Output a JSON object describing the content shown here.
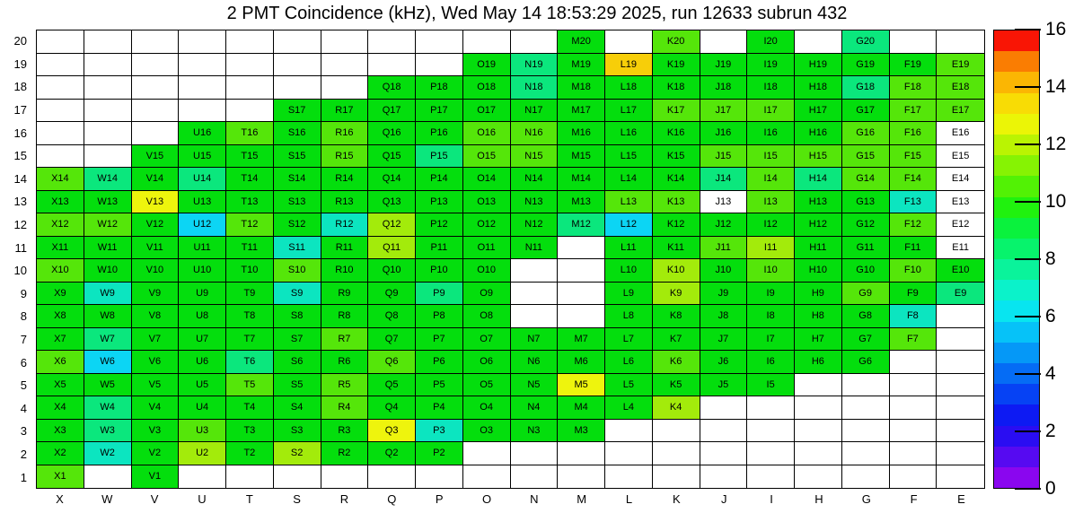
{
  "chart_data": {
    "type": "heatmap",
    "title": "2 PMT Coincidence (kHz), Wed May 14 18:53:29 2025, run 12633 subrun 432",
    "columns": [
      "X",
      "W",
      "V",
      "U",
      "T",
      "S",
      "R",
      "Q",
      "P",
      "O",
      "N",
      "M",
      "L",
      "K",
      "J",
      "I",
      "H",
      "G",
      "F",
      "E"
    ],
    "rows": [
      "20",
      "19",
      "18",
      "17",
      "16",
      "15",
      "14",
      "13",
      "12",
      "11",
      "10",
      "9",
      "8",
      "7",
      "6",
      "5",
      "4",
      "3",
      "2",
      "1"
    ],
    "cell_label_rule": "column letter + row number, e.g. X14",
    "value_scale": {
      "min": 0,
      "max": 16,
      "unit": "kHz",
      "ticks_top_to_bottom": [
        "16",
        "14",
        "12",
        "10",
        "8",
        "6",
        "4",
        "2",
        "0"
      ]
    },
    "palette_colors": {
      "g": "#04DE0D",
      "lg": "#55E60A",
      "yg": "#A3EB0B",
      "y": "#EEF40D",
      "gold": "#F7CE09",
      "sg": "#0BE77D",
      "tq": "#0CE5C0",
      "cy": "#0CD5F4",
      "w": "#FFFFFF"
    },
    "palette_value_estimates_khz": {
      "g": 9,
      "lg": 10,
      "yg": 11,
      "y": 12,
      "gold": 13,
      "sg": 7.5,
      "tq": 6.5,
      "cy": 5.5,
      "w": 0
    },
    "colorbar_bands_bottom_to_top": [
      "#8A06EF",
      "#560AF1",
      "#2A0DF2",
      "#0D1AF3",
      "#0642F4",
      "#056CF5",
      "#0598F7",
      "#06C2F8",
      "#08E5F0",
      "#0BF2CA",
      "#0AF39B",
      "#07F36C",
      "#0AF23D",
      "#20F20E",
      "#52F205",
      "#86F303",
      "#BAF402",
      "#EBF506",
      "#F8DC05",
      "#FBB603",
      "#FA7D02",
      "#F91505"
    ],
    "grid": [
      [
        "",
        "",
        "",
        "",
        "",
        "",
        "",
        "",
        "",
        "",
        "",
        "g",
        "",
        "lg",
        "",
        "g",
        "",
        "sg",
        "",
        ""
      ],
      [
        "",
        "",
        "",
        "",
        "",
        "",
        "",
        "",
        "",
        "g",
        "sg",
        "g",
        "gold",
        "g",
        "g",
        "g",
        "g",
        "g",
        "g",
        "lg"
      ],
      [
        "",
        "",
        "",
        "",
        "",
        "",
        "",
        "g",
        "g",
        "g",
        "sg",
        "g",
        "g",
        "g",
        "g",
        "g",
        "g",
        "sg",
        "lg",
        "lg"
      ],
      [
        "",
        "",
        "",
        "",
        "",
        "g",
        "g",
        "g",
        "g",
        "g",
        "g",
        "g",
        "g",
        "lg",
        "lg",
        "lg",
        "g",
        "g",
        "lg",
        "lg"
      ],
      [
        "",
        "",
        "",
        "g",
        "lg",
        "g",
        "lg",
        "g",
        "g",
        "lg",
        "lg",
        "g",
        "g",
        "g",
        "g",
        "g",
        "g",
        "lg",
        "lg",
        "w"
      ],
      [
        "",
        "",
        "g",
        "g",
        "g",
        "g",
        "lg",
        "g",
        "sg",
        "lg",
        "lg",
        "g",
        "g",
        "g",
        "lg",
        "lg",
        "lg",
        "lg",
        "lg",
        "w"
      ],
      [
        "lg",
        "sg",
        "g",
        "sg",
        "g",
        "g",
        "g",
        "g",
        "g",
        "g",
        "g",
        "g",
        "g",
        "g",
        "sg",
        "lg",
        "sg",
        "lg",
        "lg",
        "w"
      ],
      [
        "g",
        "g",
        "y",
        "g",
        "g",
        "g",
        "g",
        "g",
        "g",
        "g",
        "g",
        "g",
        "lg",
        "lg",
        "w",
        "lg",
        "g",
        "g",
        "tq",
        "w"
      ],
      [
        "lg",
        "lg",
        "g",
        "cy",
        "lg",
        "g",
        "tq",
        "yg",
        "g",
        "g",
        "g",
        "sg",
        "cy",
        "g",
        "g",
        "g",
        "g",
        "g",
        "lg",
        "w"
      ],
      [
        "g",
        "g",
        "g",
        "g",
        "g",
        "tq",
        "g",
        "yg",
        "g",
        "g",
        "g",
        "",
        "g",
        "g",
        "lg",
        "yg",
        "g",
        "g",
        "g",
        "w"
      ],
      [
        "lg",
        "g",
        "g",
        "g",
        "g",
        "lg",
        "g",
        "g",
        "g",
        "g",
        "",
        "",
        "g",
        "yg",
        "g",
        "lg",
        "g",
        "g",
        "lg",
        "g"
      ],
      [
        "g",
        "tq",
        "g",
        "g",
        "g",
        "tq",
        "g",
        "g",
        "sg",
        "g",
        "",
        "",
        "g",
        "yg",
        "g",
        "g",
        "g",
        "lg",
        "g",
        "sg"
      ],
      [
        "g",
        "g",
        "g",
        "g",
        "g",
        "g",
        "g",
        "g",
        "g",
        "g",
        "",
        "",
        "g",
        "g",
        "g",
        "g",
        "g",
        "g",
        "tq",
        ""
      ],
      [
        "g",
        "sg",
        "g",
        "g",
        "g",
        "g",
        "lg",
        "g",
        "g",
        "g",
        "g",
        "g",
        "g",
        "g",
        "g",
        "g",
        "g",
        "g",
        "lg",
        ""
      ],
      [
        "lg",
        "cy",
        "g",
        "g",
        "sg",
        "g",
        "g",
        "lg",
        "g",
        "g",
        "g",
        "g",
        "g",
        "lg",
        "g",
        "g",
        "g",
        "g",
        "",
        ""
      ],
      [
        "g",
        "g",
        "g",
        "g",
        "lg",
        "g",
        "lg",
        "g",
        "g",
        "g",
        "g",
        "y",
        "g",
        "g",
        "g",
        "g",
        "",
        "",
        "",
        ""
      ],
      [
        "g",
        "sg",
        "g",
        "g",
        "g",
        "g",
        "lg",
        "g",
        "g",
        "g",
        "g",
        "g",
        "g",
        "yg",
        "",
        "",
        "",
        "",
        "",
        ""
      ],
      [
        "g",
        "sg",
        "g",
        "lg",
        "g",
        "g",
        "g",
        "y",
        "tq",
        "g",
        "g",
        "g",
        "",
        "",
        "",
        "",
        "",
        "",
        "",
        ""
      ],
      [
        "g",
        "tq",
        "g",
        "yg",
        "g",
        "yg",
        "g",
        "g",
        "g",
        "",
        "",
        "",
        "",
        "",
        "",
        "",
        "",
        "",
        "",
        ""
      ],
      [
        "lg",
        "",
        "g",
        "",
        "",
        "",
        "",
        "",
        "",
        "",
        "",
        "",
        "",
        "",
        "",
        "",
        "",
        "",
        "",
        ""
      ]
    ]
  }
}
